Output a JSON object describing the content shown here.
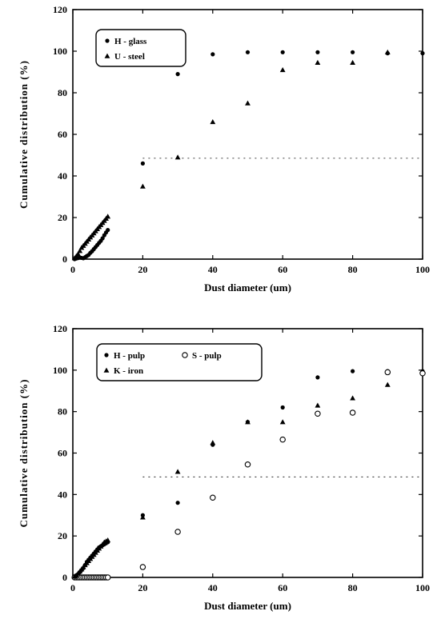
{
  "chart_data": [
    {
      "type": "scatter",
      "xlabel": "Dust diameter (um)",
      "ylabel": "Cumulative distribution (%)",
      "xlim": [
        0,
        100
      ],
      "ylim": [
        0,
        120
      ],
      "xticks": [
        "0",
        "20",
        "40",
        "60",
        "80",
        "100"
      ],
      "yticks": [
        "0",
        "20",
        "40",
        "60",
        "80",
        "100",
        "120"
      ],
      "reference_line_y": 48.5,
      "legend_position": "top-left",
      "series": [
        {
          "name": "H - glass",
          "marker": "circle-filled",
          "points": [
            [
              0.5,
              0
            ],
            [
              1,
              0.3
            ],
            [
              1.5,
              0.5
            ],
            [
              2,
              0.8
            ],
            [
              2.5,
              0.6
            ],
            [
              3,
              0.4
            ],
            [
              3.5,
              0.9
            ],
            [
              4,
              1.5
            ],
            [
              4.5,
              2
            ],
            [
              5,
              3
            ],
            [
              5.5,
              3.8
            ],
            [
              6,
              4.8
            ],
            [
              6.5,
              5.8
            ],
            [
              7,
              6.8
            ],
            [
              7.5,
              7.8
            ],
            [
              8,
              8.8
            ],
            [
              8.5,
              10
            ],
            [
              9,
              11.5
            ],
            [
              9.5,
              12.8
            ],
            [
              10,
              14
            ],
            [
              20,
              46
            ],
            [
              30,
              89
            ],
            [
              40,
              98.5
            ],
            [
              50,
              99.5
            ],
            [
              60,
              99.5
            ],
            [
              70,
              99.5
            ],
            [
              80,
              99.5
            ],
            [
              90,
              99
            ],
            [
              100,
              99
            ]
          ]
        },
        {
          "name": "U - steel",
          "marker": "triangle-filled",
          "points": [
            [
              0.5,
              0.5
            ],
            [
              1,
              1.5
            ],
            [
              1.5,
              2.5
            ],
            [
              2,
              4
            ],
            [
              2.5,
              5.5
            ],
            [
              3,
              6.5
            ],
            [
              3.5,
              7.5
            ],
            [
              4,
              8.5
            ],
            [
              4.5,
              9.5
            ],
            [
              5,
              10.5
            ],
            [
              5.5,
              11.5
            ],
            [
              6,
              12.5
            ],
            [
              6.5,
              13.5
            ],
            [
              7,
              14.5
            ],
            [
              7.5,
              15.5
            ],
            [
              8,
              16.5
            ],
            [
              8.5,
              17.5
            ],
            [
              9,
              18.5
            ],
            [
              9.5,
              19.5
            ],
            [
              10,
              20.5
            ],
            [
              20,
              35
            ],
            [
              30,
              49
            ],
            [
              40,
              66
            ],
            [
              50,
              75
            ],
            [
              60,
              91
            ],
            [
              70,
              94.5
            ],
            [
              80,
              94.5
            ],
            [
              90,
              99.5
            ]
          ]
        }
      ]
    },
    {
      "type": "scatter",
      "xlabel": "Dust diameter (um)",
      "ylabel": "Cumulative distribution (%)",
      "xlim": [
        0,
        100
      ],
      "ylim": [
        0,
        120
      ],
      "xticks": [
        "0",
        "20",
        "40",
        "60",
        "80",
        "100"
      ],
      "yticks": [
        "0",
        "20",
        "40",
        "60",
        "80",
        "100",
        "120"
      ],
      "reference_line_y": 48.5,
      "legend_position": "top-left",
      "series": [
        {
          "name": "H - pulp",
          "marker": "circle-filled",
          "points": [
            [
              0.5,
              0.5
            ],
            [
              1,
              1
            ],
            [
              1.5,
              1.5
            ],
            [
              2,
              2.5
            ],
            [
              2.5,
              3.5
            ],
            [
              3,
              4.5
            ],
            [
              3.5,
              6
            ],
            [
              4,
              7.5
            ],
            [
              4.5,
              8.5
            ],
            [
              5,
              9.5
            ],
            [
              5.5,
              10.5
            ],
            [
              6,
              11.5
            ],
            [
              6.5,
              12.5
            ],
            [
              7,
              13.5
            ],
            [
              7.5,
              14.5
            ],
            [
              8,
              15
            ],
            [
              8.5,
              15.5
            ],
            [
              9,
              16
            ],
            [
              9.5,
              16.5
            ],
            [
              10,
              17
            ],
            [
              20,
              30
            ],
            [
              30,
              36
            ],
            [
              40,
              64
            ],
            [
              50,
              75
            ],
            [
              60,
              82
            ],
            [
              70,
              96.5
            ],
            [
              80,
              99.5
            ],
            [
              90,
              99.5
            ],
            [
              100,
              99.5
            ]
          ]
        },
        {
          "name": "S - pulp",
          "marker": "circle-open",
          "points": [
            [
              0.5,
              0
            ],
            [
              1,
              0
            ],
            [
              1.5,
              0
            ],
            [
              2,
              0
            ],
            [
              2.5,
              0
            ],
            [
              3,
              0
            ],
            [
              3.5,
              0
            ],
            [
              4,
              0
            ],
            [
              4.5,
              0
            ],
            [
              5,
              0
            ],
            [
              5.5,
              0
            ],
            [
              6,
              0
            ],
            [
              6.5,
              0
            ],
            [
              7,
              0
            ],
            [
              7.5,
              0
            ],
            [
              8,
              0
            ],
            [
              8.5,
              0
            ],
            [
              9,
              0
            ],
            [
              9.5,
              0
            ],
            [
              10,
              0
            ],
            [
              20,
              5
            ],
            [
              30,
              22
            ],
            [
              40,
              38.5
            ],
            [
              50,
              54.5
            ],
            [
              60,
              66.5
            ],
            [
              70,
              79
            ],
            [
              80,
              79.5
            ],
            [
              90,
              99
            ],
            [
              100,
              98.5
            ]
          ]
        },
        {
          "name": "K - iron",
          "marker": "triangle-filled",
          "points": [
            [
              0.5,
              0.5
            ],
            [
              1,
              1
            ],
            [
              1.5,
              2
            ],
            [
              2,
              3
            ],
            [
              2.5,
              4
            ],
            [
              3,
              5
            ],
            [
              3.5,
              6
            ],
            [
              4,
              7
            ],
            [
              4.5,
              8
            ],
            [
              5,
              9
            ],
            [
              5.5,
              10
            ],
            [
              6,
              11
            ],
            [
              6.5,
              12
            ],
            [
              7,
              13
            ],
            [
              7.5,
              14
            ],
            [
              8,
              15
            ],
            [
              8.5,
              16
            ],
            [
              9,
              17
            ],
            [
              9.5,
              17.5
            ],
            [
              10,
              18
            ],
            [
              20,
              29
            ],
            [
              30,
              51
            ],
            [
              40,
              65
            ],
            [
              50,
              75
            ],
            [
              60,
              75
            ],
            [
              70,
              83
            ],
            [
              80,
              86.5
            ],
            [
              90,
              93
            ]
          ]
        }
      ]
    }
  ]
}
